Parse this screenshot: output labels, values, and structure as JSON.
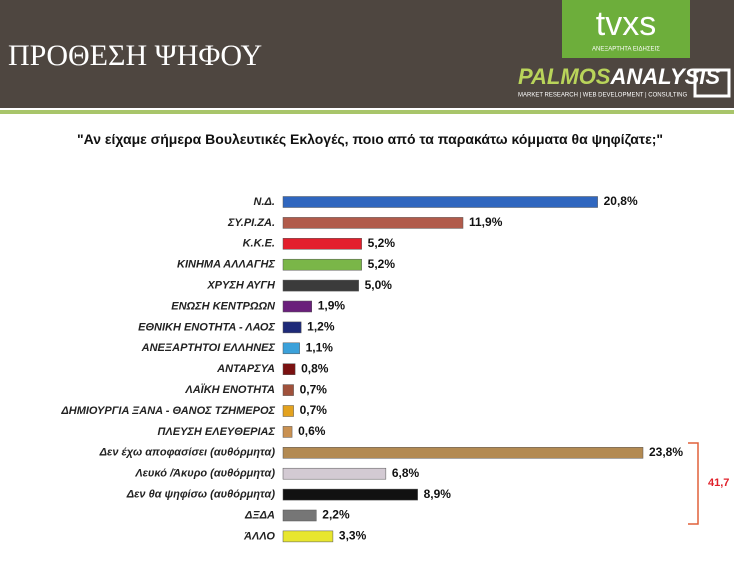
{
  "header": {
    "title": "ΠΡΟΘΕΣΗ ΨΗΦΟΥ",
    "logo1": "tvxs",
    "logo1_sub": "ΑΝΕΞΑΡΤΗΤΑ ΕΙΔΗΣΕΙΣ",
    "logo2a": "PALMOS",
    "logo2b": "ANALYSIS",
    "logo2_sub": "MARKET RESEARCH | WEB DEVELOPMENT | CONSULTING"
  },
  "chart_data": {
    "type": "bar",
    "orientation": "horizontal",
    "title": "\"Αν είχαμε σήμερα Βουλευτικές Εκλογές, ποιο από τα παρακάτω κόμματα θα ψηφίζατε;\"",
    "categories": [
      "Ν.Δ.",
      "ΣΥ.ΡΙ.ΖΑ.",
      "Κ.Κ.Ε.",
      "ΚΙΝΗΜΑ ΑΛΛΑΓΗΣ",
      "ΧΡΥΣΗ ΑΥΓΗ",
      "ΕΝΩΣΗ ΚΕΝΤΡΩΩΝ",
      "ΕΘΝΙΚΗ ΕΝΟΤΗΤΑ - ΛΑΟΣ",
      "ΑΝΕΞΑΡΤΗΤΟΙ ΕΛΛΗΝΕΣ",
      "ΑΝΤΑΡΣΥΑ",
      "ΛΑΪΚΗ ΕΝΟΤΗΤΑ",
      "ΔΗΜΙΟΥΡΓΙΑ ΞΑΝΑ - ΘΑΝΟΣ ΤΖΗΜΕΡΟΣ",
      "ΠΛΕΥΣΗ ΕΛΕΥΘΕΡΙΑΣ",
      "Δεν έχω αποφασίσει (αυθόρμητα)",
      "Λευκό /Άκυρο (αυθόρμητα)",
      "Δεν θα ψηφίσω (αυθόρμητα)",
      "ΔΞΔΑ",
      "ΆΛΛΟ"
    ],
    "values": [
      20.8,
      11.9,
      5.2,
      5.2,
      5.0,
      1.9,
      1.2,
      1.1,
      0.8,
      0.7,
      0.7,
      0.6,
      23.8,
      6.8,
      8.9,
      2.2,
      3.3
    ],
    "value_labels": [
      "20,8%",
      "11,9%",
      "5,2%",
      "5,2%",
      "5,0%",
      "1,9%",
      "1,2%",
      "1,1%",
      "0,8%",
      "0,7%",
      "0,7%",
      "0,6%",
      "23,8%",
      "6,8%",
      "8,9%",
      "2,2%",
      "3,3%"
    ],
    "colors": [
      "#2f66bf",
      "#b15b4b",
      "#e31f2d",
      "#7ab648",
      "#3b3b3b",
      "#6a1f7b",
      "#1e2a78",
      "#3ba1da",
      "#7a1111",
      "#a0513b",
      "#e3a21f",
      "#c99152",
      "#b38a52",
      "#d3cad3",
      "#111111",
      "#767676",
      "#e8e62e"
    ],
    "annotation": "41,7"
  }
}
